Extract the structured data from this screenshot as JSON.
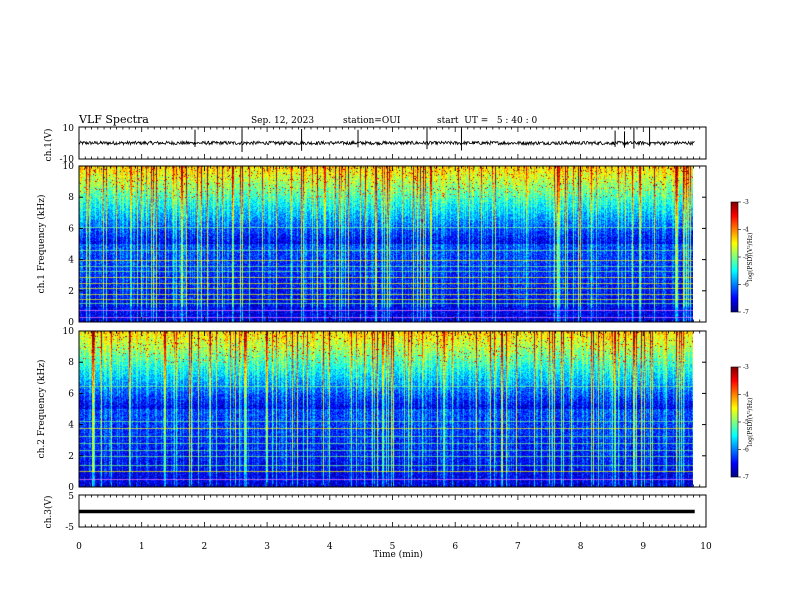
{
  "header": {
    "title": "VLF Spectra",
    "date": "Sep. 12, 2023",
    "station": "station=OUI",
    "start": "start  UT =   5 : 40 : 0"
  },
  "chart_data": [
    {
      "type": "line",
      "name_panel": "ch1-waveform",
      "ylabel": "ch.1(V)",
      "yticks": [
        "10",
        "-10"
      ],
      "ylim": [
        -10,
        10
      ],
      "xlim": [
        0,
        10
      ],
      "data_end_min": 9.82,
      "baseline": 0,
      "spikes_min": [
        1.85,
        2.6,
        3.55,
        4.45,
        5.55,
        6.1,
        8.55,
        8.7,
        8.85,
        9.1
      ]
    },
    {
      "type": "heatmap",
      "name_panel": "ch1-spectrogram",
      "ylabel": "ch.1 Frequency (kHz)",
      "yticks": [
        "0",
        "2",
        "4",
        "6",
        "8",
        "10"
      ],
      "ylim": [
        0,
        10
      ],
      "xlim": [
        0,
        10
      ],
      "data_end_min": 9.82,
      "colorbar": {
        "label": "log(PSD)(V²/Hz)",
        "ticks": [
          "-3",
          "-4",
          "-5",
          "-6",
          "-7"
        ],
        "range": [
          -7,
          -3
        ]
      },
      "narrowband_lines_khz": [
        0.3,
        0.8,
        1.2,
        1.5,
        1.8,
        2.2,
        2.5,
        2.9,
        3.3,
        3.6,
        4.0,
        4.6,
        6.1
      ]
    },
    {
      "type": "heatmap",
      "name_panel": "ch2-spectrogram",
      "ylabel": "ch.2 Frequency (kHz)",
      "yticks": [
        "0",
        "2",
        "4",
        "6",
        "8",
        "10"
      ],
      "ylim": [
        0,
        10
      ],
      "xlim": [
        0,
        10
      ],
      "data_end_min": 9.82,
      "colorbar": {
        "label": "log(PSD)(V²/Hz)",
        "ticks": [
          "-3",
          "-4",
          "-5",
          "-6",
          "-7"
        ],
        "range": [
          -7,
          -3
        ]
      },
      "narrowband_lines_khz": [
        0.5,
        1.0,
        1.4,
        2.0,
        2.4,
        2.8,
        3.3,
        3.8,
        4.2,
        6.5
      ]
    },
    {
      "type": "line",
      "name_panel": "ch3-waveform",
      "ylabel": "ch.3(V)",
      "yticks": [
        "5",
        "-5"
      ],
      "ylim": [
        -5,
        5
      ],
      "xlim": [
        0,
        10
      ],
      "data_end_min": 9.82,
      "baseline": 0,
      "xlabel": "Time (min)",
      "xticks": [
        "0",
        "1",
        "2",
        "3",
        "4",
        "5",
        "6",
        "7",
        "8",
        "9",
        "10"
      ]
    }
  ],
  "colors": {
    "waveform": "#000000",
    "colormap": [
      "#00007f",
      "#0000ff",
      "#007fff",
      "#00ffff",
      "#7fff7f",
      "#ffff00",
      "#ff7f00",
      "#ff0000",
      "#7f0000"
    ]
  }
}
